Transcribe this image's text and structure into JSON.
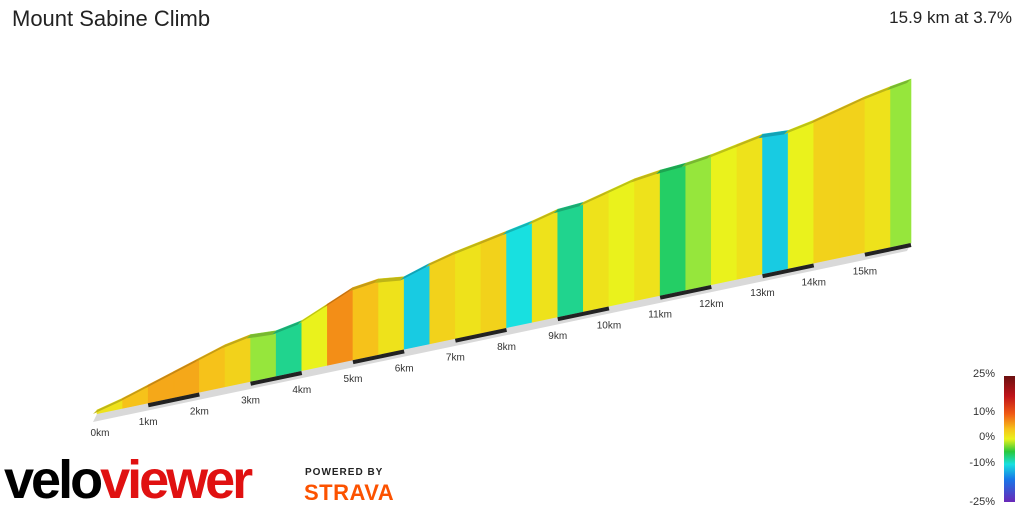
{
  "header": {
    "title": "Mount Sabine Climb",
    "summary": "15.9 km at 3.7%"
  },
  "legend": {
    "labels": [
      "25%",
      "10%",
      "0%",
      "-10%",
      "-25%"
    ]
  },
  "branding": {
    "logo_velo": "velo",
    "logo_viewer": "viewer",
    "powered_by": "POWERED BY",
    "strava": "STRAVA"
  },
  "chart_data": {
    "type": "area",
    "title": "Mount Sabine Climb",
    "xlabel": "",
    "ylabel": "",
    "x_unit": "km",
    "xlim": [
      0,
      15.9
    ],
    "tick_labels": [
      "0km",
      "1km",
      "2km",
      "3km",
      "4km",
      "5km",
      "6km",
      "7km",
      "8km",
      "9km",
      "10km",
      "11km",
      "12km",
      "13km",
      "14km",
      "15km"
    ],
    "distance_km": [
      0,
      0.5,
      1.0,
      1.5,
      2.0,
      2.5,
      3.0,
      3.5,
      4.0,
      4.5,
      5.0,
      5.5,
      6.0,
      6.5,
      7.0,
      7.5,
      8.0,
      8.5,
      9.0,
      9.5,
      10.0,
      10.5,
      11.0,
      11.5,
      12.0,
      12.5,
      13.0,
      13.5,
      14.0,
      14.5,
      15.0,
      15.5,
      15.9
    ],
    "relative_height": [
      0,
      0.04,
      0.09,
      0.14,
      0.19,
      0.24,
      0.27,
      0.26,
      0.29,
      0.36,
      0.43,
      0.45,
      0.43,
      0.48,
      0.52,
      0.55,
      0.58,
      0.61,
      0.65,
      0.66,
      0.7,
      0.74,
      0.76,
      0.77,
      0.79,
      0.82,
      0.85,
      0.84,
      0.87,
      0.91,
      0.95,
      0.98,
      1.0
    ],
    "gradient_pct": [
      4,
      6,
      7,
      7,
      6,
      5,
      1,
      -3,
      3,
      8,
      6,
      4,
      -6,
      5,
      4,
      5,
      -5,
      4,
      -3,
      4,
      3,
      4,
      -2,
      1,
      3,
      4,
      -6,
      3,
      5,
      5,
      4,
      1
    ],
    "colorscale": {
      "min": -25,
      "max": 25,
      "labels": [
        "25%",
        "10%",
        "0%",
        "-10%",
        "-25%"
      ]
    }
  }
}
